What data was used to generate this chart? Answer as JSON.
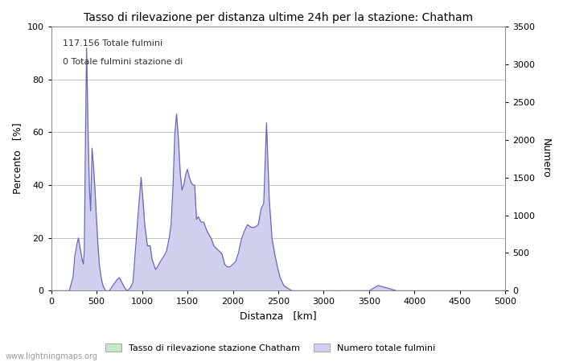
{
  "title": "Tasso di rilevazione per distanza ultime 24h per la stazione: Chatham",
  "xlabel": "Distanza   [km]",
  "ylabel_left": "Percento   [%]",
  "ylabel_right": "Numero",
  "annotation_line1": "117.156 Totale fulmini",
  "annotation_line2": "0 Totale fulmini stazione di",
  "xlim": [
    0,
    5000
  ],
  "ylim_left": [
    0,
    100
  ],
  "ylim_right": [
    0,
    3500
  ],
  "xticks": [
    0,
    500,
    1000,
    1500,
    2000,
    2500,
    3000,
    3500,
    4000,
    4500,
    5000
  ],
  "yticks_left": [
    0,
    20,
    40,
    60,
    80,
    100
  ],
  "yticks_right": [
    0,
    500,
    1000,
    1500,
    2000,
    2500,
    3000,
    3500
  ],
  "fill_color_blue": "#d0d0ee",
  "line_color_blue": "#6666bb",
  "fill_color_green": "#c8e8c8",
  "watermark": "www.lightningmaps.org",
  "legend_label1": "Tasso di rilevazione stazione Chatham",
  "legend_label2": "Numero totale fulmini",
  "background_color": "#ffffff",
  "grid_color": "#bbbbbb",
  "figsize": [
    7.0,
    4.5
  ],
  "dpi": 100,
  "curve_x": [
    0,
    200,
    240,
    260,
    280,
    300,
    320,
    340,
    355,
    365,
    375,
    390,
    405,
    420,
    435,
    450,
    465,
    480,
    495,
    510,
    530,
    550,
    570,
    600,
    640,
    680,
    720,
    750,
    780,
    810,
    840,
    870,
    900,
    930,
    950,
    970,
    990,
    1010,
    1030,
    1060,
    1090,
    1110,
    1130,
    1150,
    1170,
    1200,
    1240,
    1270,
    1300,
    1320,
    1340,
    1360,
    1380,
    1400,
    1420,
    1440,
    1460,
    1480,
    1500,
    1520,
    1540,
    1560,
    1580,
    1600,
    1620,
    1650,
    1680,
    1710,
    1740,
    1760,
    1790,
    1820,
    1850,
    1880,
    1910,
    1940,
    1970,
    2000,
    2030,
    2060,
    2090,
    2120,
    2160,
    2200,
    2240,
    2280,
    2310,
    2340,
    2370,
    2400,
    2430,
    2460,
    2490,
    2520,
    2560,
    2600,
    2650,
    2700,
    2750,
    2800,
    2900,
    3000,
    3100,
    3200,
    3300,
    3400,
    3500,
    3600,
    3700,
    3800,
    3900,
    4000,
    4200,
    4500,
    5000
  ],
  "curve_y": [
    0,
    0,
    5,
    13,
    17,
    20,
    16,
    12,
    10,
    15,
    50,
    92,
    62,
    40,
    30,
    54,
    48,
    40,
    30,
    20,
    10,
    5,
    2,
    0,
    0,
    2,
    4,
    5,
    3,
    1,
    0,
    1,
    3,
    16,
    26,
    34,
    43,
    35,
    25,
    17,
    17,
    12,
    10,
    8,
    9,
    11,
    13,
    15,
    20,
    25,
    38,
    59,
    67,
    58,
    45,
    38,
    40,
    44,
    46,
    43,
    41,
    40,
    40,
    27,
    28,
    26,
    26,
    23,
    21,
    20,
    17,
    16,
    15,
    14,
    10,
    9,
    9,
    10,
    11,
    14,
    19,
    22,
    25,
    24,
    24,
    25,
    31,
    33,
    64,
    35,
    20,
    14,
    9,
    5,
    2,
    1,
    0,
    0,
    0,
    0,
    0,
    0,
    0,
    0,
    0,
    0,
    0,
    2,
    1,
    0,
    0,
    0,
    0,
    0,
    0
  ]
}
